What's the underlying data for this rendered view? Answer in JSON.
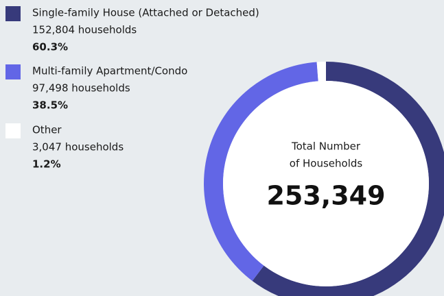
{
  "chart_data": {
    "type": "donut",
    "categories": [
      "Single-family House (Attached or Detached)",
      "Multi-family Apartment/Condo",
      "Other"
    ],
    "values": [
      60.3,
      38.5,
      1.2
    ],
    "value_labels": [
      "60.3%",
      "38.5%",
      "1.2%"
    ],
    "households_labels": [
      "152,804 households",
      "97,498 households",
      "3,047 households"
    ],
    "colors": [
      "#373a7b",
      "#6266e6",
      "#ffffff"
    ],
    "center_label": [
      "Total Number",
      "of Households"
    ],
    "total_label": "253,349"
  }
}
